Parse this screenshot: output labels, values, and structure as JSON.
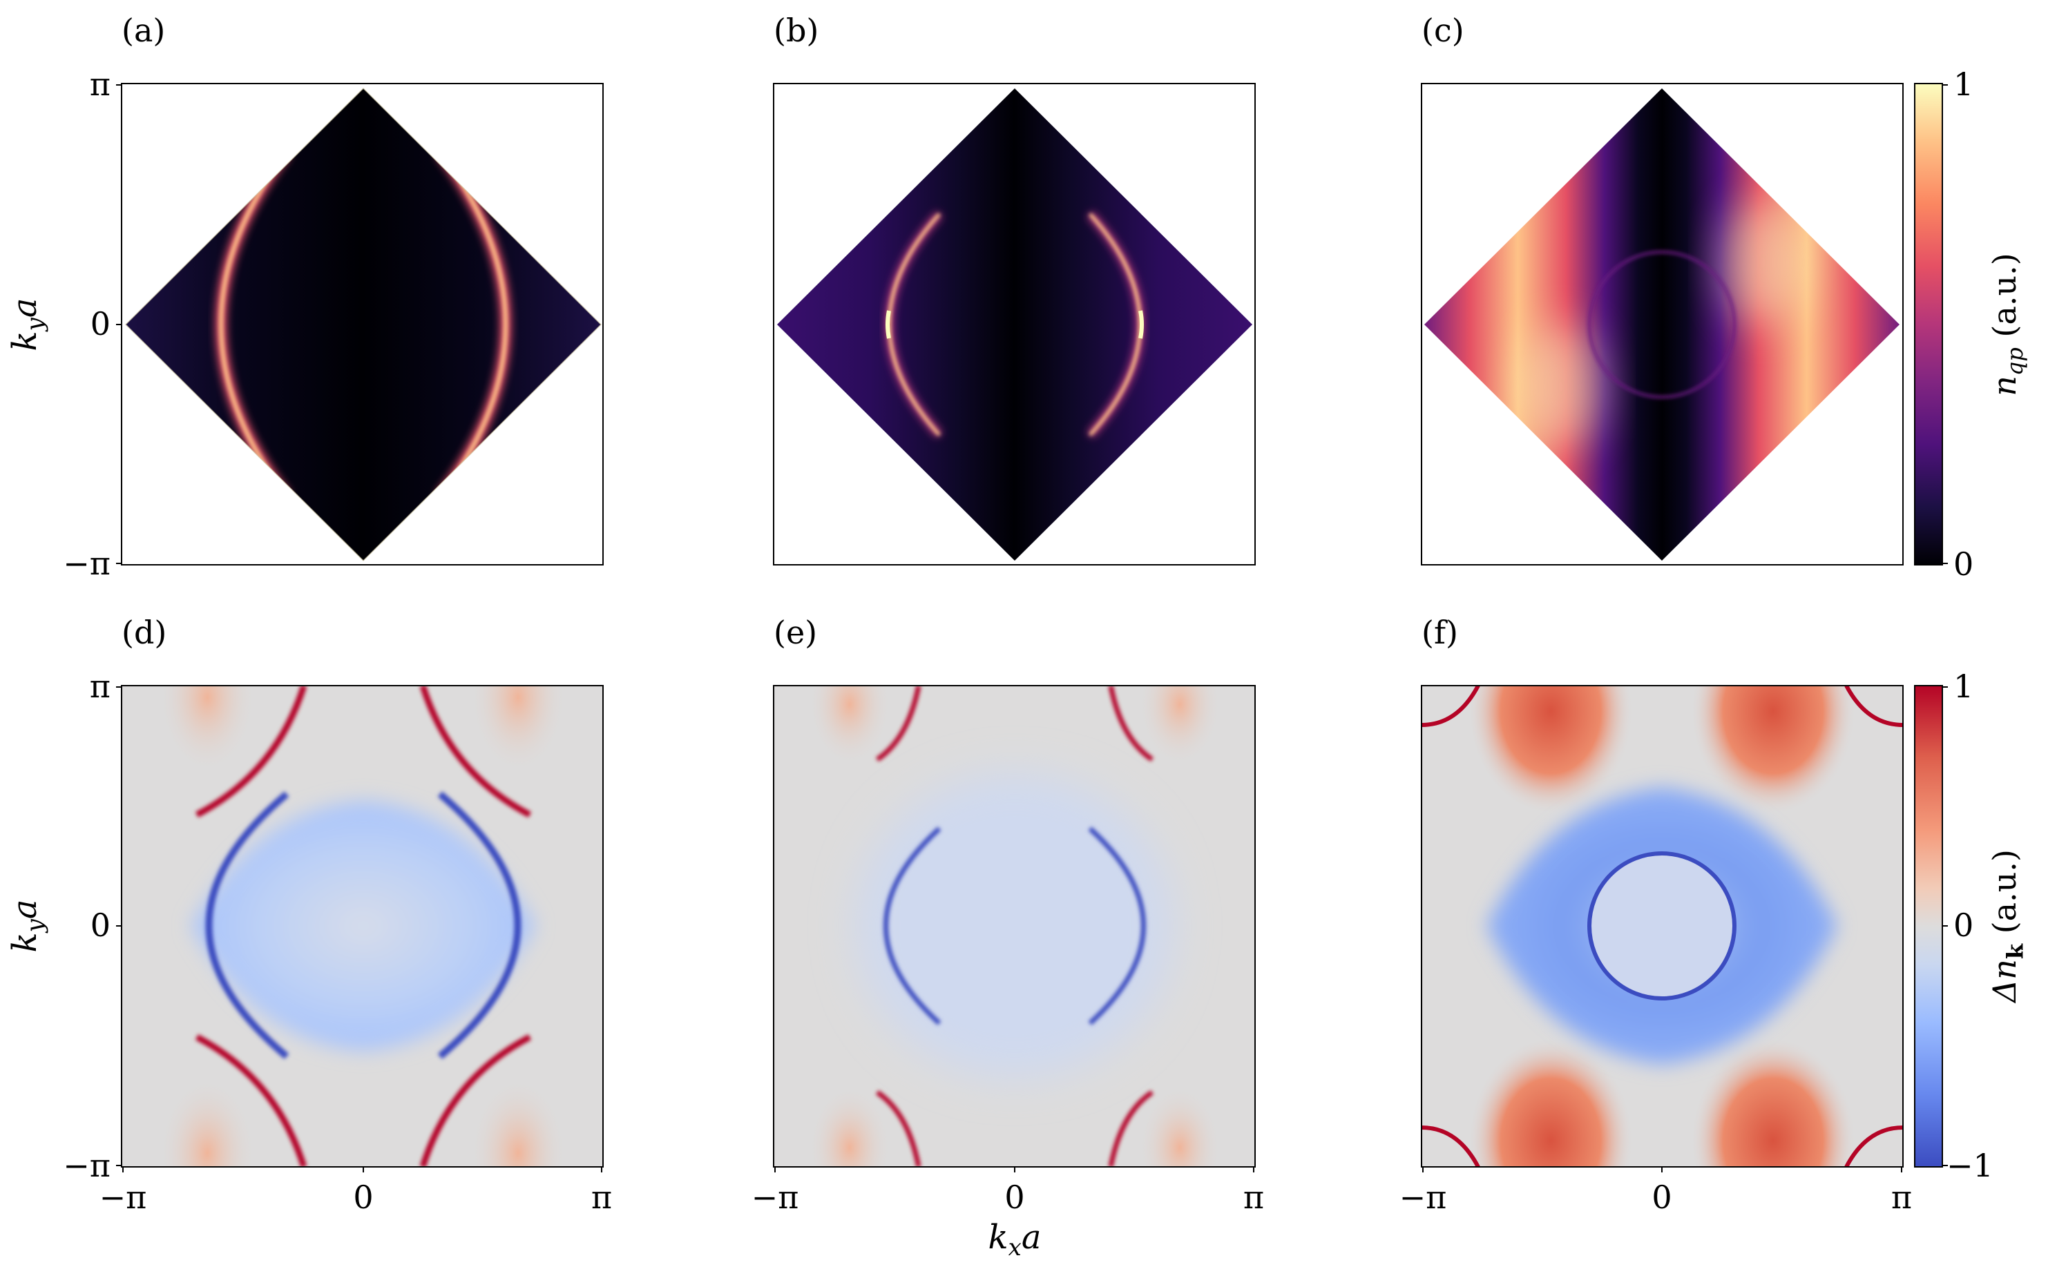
{
  "chart_data": [
    {
      "type": "heatmap",
      "panel": "(a)",
      "xlabel": "",
      "ylabel": "k_y a",
      "x_ticks": [
        "−π",
        "0",
        "π"
      ],
      "y_ticks": [
        "−π",
        "0",
        "π"
      ],
      "xlim": [
        -3.1416,
        3.1416
      ],
      "ylim": [
        -3.1416,
        3.1416
      ],
      "show_xticklabels": false,
      "show_yticklabels": true,
      "region": "diamond |kx|+|ky| ≤ π",
      "colormap": "magma",
      "features": [
        {
          "kind": "arc",
          "side": "left",
          "center_kx": 0.0,
          "center_ky": 0.0,
          "radius": 2.65,
          "intensity": 0.9,
          "width": 0.13
        },
        {
          "kind": "arc",
          "side": "right",
          "center_kx": 0.0,
          "center_ky": 0.0,
          "radius": 2.65,
          "intensity": 0.9,
          "width": 0.13
        },
        {
          "kind": "background",
          "description_value": 0.02
        }
      ]
    },
    {
      "type": "heatmap",
      "panel": "(b)",
      "xlabel": "",
      "ylabel": "",
      "x_ticks": [
        "−π",
        "0",
        "π"
      ],
      "y_ticks": [
        "−π",
        "0",
        "π"
      ],
      "xlim": [
        -3.1416,
        3.1416
      ],
      "ylim": [
        -3.1416,
        3.1416
      ],
      "show_xticklabels": false,
      "show_yticklabels": false,
      "region": "diamond |kx|+|ky| ≤ π",
      "colormap": "magma",
      "features": [
        {
          "kind": "arc",
          "side": "left",
          "center_kx": 0.0,
          "center_ky": 0.0,
          "radius": 1.8,
          "intensity": 1.0,
          "width": 0.08
        },
        {
          "kind": "arc",
          "side": "right",
          "center_kx": 0.0,
          "center_ky": 0.0,
          "radius": 1.8,
          "intensity": 1.0,
          "width": 0.08
        },
        {
          "kind": "band",
          "intensity": 0.25
        }
      ]
    },
    {
      "type": "heatmap",
      "panel": "(c)",
      "xlabel": "",
      "ylabel": "",
      "x_ticks": [
        "−π",
        "0",
        "π"
      ],
      "y_ticks": [
        "−π",
        "0",
        "π"
      ],
      "xlim": [
        -3.1416,
        3.1416
      ],
      "ylim": [
        -3.1416,
        3.1416
      ],
      "show_xticklabels": false,
      "show_yticklabels": false,
      "region": "diamond |kx|+|ky| ≤ π",
      "colormap": "magma",
      "features": [
        {
          "kind": "ring",
          "center_kx": 0.0,
          "center_ky": 0.0,
          "radius": 0.95,
          "intensity": 0.3,
          "width": 0.05
        },
        {
          "kind": "band",
          "intensity": 0.85
        }
      ],
      "colorbar": {
        "label": "n_qp (a.u.)",
        "min": 0,
        "max": 1,
        "ticks": [
          "0",
          "1"
        ]
      }
    },
    {
      "type": "heatmap",
      "panel": "(d)",
      "xlabel": "",
      "ylabel": "k_y a",
      "x_ticks": [
        "−π",
        "0",
        "π"
      ],
      "y_ticks": [
        "−π",
        "0",
        "π"
      ],
      "xlim": [
        -3.1416,
        3.1416
      ],
      "ylim": [
        -3.1416,
        3.1416
      ],
      "show_xticklabels": true,
      "show_yticklabels": true,
      "region": "full square",
      "colormap": "coolwarm",
      "features": [
        {
          "kind": "contour",
          "shape": "diamond-like",
          "value": -0.9
        },
        {
          "kind": "contour",
          "shape": "hyperbolic arcs near top/bottom",
          "value": 0.9
        },
        {
          "kind": "interior",
          "value": -0.2
        }
      ]
    },
    {
      "type": "heatmap",
      "panel": "(e)",
      "xlabel": "k_x a",
      "ylabel": "",
      "x_ticks": [
        "−π",
        "0",
        "π"
      ],
      "y_ticks": [
        "−π",
        "0",
        "π"
      ],
      "xlim": [
        -3.1416,
        3.1416
      ],
      "ylim": [
        -3.1416,
        3.1416
      ],
      "show_xticklabels": true,
      "show_yticklabels": false,
      "region": "full square",
      "colormap": "coolwarm",
      "features": [
        {
          "kind": "arc",
          "side": "left/right",
          "radius": 1.8,
          "value": -0.9
        },
        {
          "kind": "corner arcs",
          "value": 0.9
        }
      ]
    },
    {
      "type": "heatmap",
      "panel": "(f)",
      "xlabel": "",
      "ylabel": "",
      "x_ticks": [
        "−π",
        "0",
        "π"
      ],
      "y_ticks": [
        "−π",
        "0",
        "π"
      ],
      "xlim": [
        -3.1416,
        3.1416
      ],
      "ylim": [
        -3.1416,
        3.1416
      ],
      "show_xticklabels": true,
      "show_yticklabels": false,
      "region": "full square",
      "colormap": "coolwarm",
      "features": [
        {
          "kind": "ring",
          "radius": 0.95,
          "value": -0.9
        },
        {
          "kind": "broad band",
          "value": -0.6
        },
        {
          "kind": "corner bands",
          "value": 0.8
        }
      ],
      "colorbar": {
        "label": "Δn_k (a.u.)",
        "min": -1,
        "max": 1,
        "ticks": [
          "−1",
          "0",
          "1"
        ]
      }
    }
  ],
  "labels": {
    "a": "(a)",
    "b": "(b)",
    "c": "(c)",
    "d": "(d)",
    "e": "(e)",
    "f": "(f)",
    "tick_pi": "π",
    "tick_zero": "0",
    "tick_mpi": "−π",
    "ylabel_main": "k",
    "ylabel_sub": "y",
    "ylabel_tail": "a",
    "xlabel_main": "k",
    "xlabel_sub": "x",
    "xlabel_tail": "a",
    "cb1_main": "n",
    "cb1_sub": "qp",
    "cb1_unit": " (a.u.)",
    "cb1_tick_top": "1",
    "cb1_tick_bot": "0",
    "cb2_main": "Δn",
    "cb2_sub": "k",
    "cb2_unit": " (a.u.)",
    "cb2_tick_top": "1",
    "cb2_tick_mid": "0",
    "cb2_tick_bot": "−1"
  },
  "colors": {
    "magma": [
      "#000004",
      "#1c1044",
      "#4f127b",
      "#812581",
      "#b5367a",
      "#e55064",
      "#fb8761",
      "#fec287",
      "#fcfdbf"
    ],
    "coolwarm": [
      "#3b4cc0",
      "#6788ee",
      "#9abbff",
      "#c9d7f0",
      "#dddcdc",
      "#f2cbb7",
      "#f49a7b",
      "#de604d",
      "#b40426"
    ]
  }
}
